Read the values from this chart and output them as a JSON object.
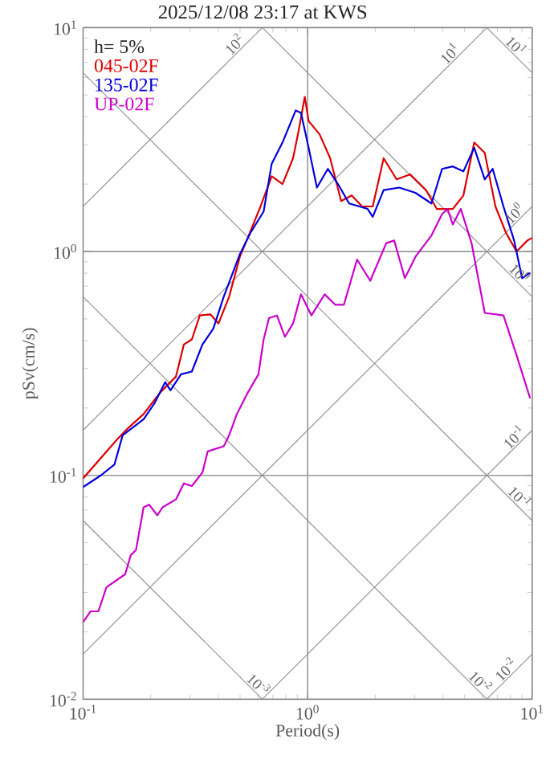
{
  "chart_data": {
    "type": "line",
    "title": "2025/12/08 23:17 at KWS",
    "xlabel": "Period(s)",
    "ylabel": "pSv(cm/s)",
    "log": "xy",
    "grid": true,
    "legend": "top left",
    "xlim": [
      0.1,
      10
    ],
    "ylim": [
      0.01,
      10
    ],
    "xticks": [
      {
        "value": 0.1,
        "label": "10$^{-1}$"
      },
      {
        "value": 1,
        "label": "10$^{0}$"
      },
      {
        "value": 10,
        "label": "10$^{1}$"
      }
    ],
    "yticks": [
      {
        "value": 0.01,
        "label": "10$^{-2}$"
      },
      {
        "value": 0.1,
        "label": "10$^{-1}$"
      },
      {
        "value": 1,
        "label": "10$^{0}$"
      },
      {
        "value": 10,
        "label": "10$^{1}$"
      }
    ],
    "annotations": [
      "h= 5%",
      {
        "text": "10$^{2}$",
        "x": 0.5,
        "y": 7.958
      },
      {
        "text": "10$^{1}$",
        "x": 4.55,
        "y": 7.242
      },
      {
        "text": "10$^{1}$",
        "x": 8.0,
        "y": 7.854
      },
      {
        "text": "10$^{0}$",
        "x": 8.8,
        "y": 1.401
      },
      {
        "text": "10$^{0}$",
        "x": 8.3,
        "y": 0.757
      },
      {
        "text": "10$^{-1}$",
        "x": 8.8,
        "y": 0.1401
      },
      {
        "text": "10$^{-1}$",
        "x": 8.3,
        "y": 0.0757
      },
      {
        "text": "10$^{-3}$",
        "x": 0.57,
        "y": 0.01102
      },
      {
        "text": "10$^{-2}$",
        "x": 5.55,
        "y": 0.01132
      },
      {
        "text": "10$^{-2}$",
        "x": 8.07,
        "y": 0.01284
      }
    ],
    "series": [
      {
        "color": "#939393",
        "x": [
          6.283,
          10
        ],
        "values": [
          0.01,
          0.01592
        ]
      },
      {
        "color": "#939393",
        "x": [
          0.6283,
          10
        ],
        "values": [
          0.01,
          0.1592
        ]
      },
      {
        "color": "#939393",
        "x": [
          0.1,
          10
        ],
        "values": [
          0.01592,
          1.592
        ]
      },
      {
        "color": "#939393",
        "x": [
          0.1,
          6.283
        ],
        "values": [
          0.1592,
          10
        ]
      },
      {
        "color": "#939393",
        "x": [
          0.1,
          0.6283
        ],
        "values": [
          1.592,
          10
        ]
      },
      {
        "color": "#939393",
        "x": [
          0.1,
          0.6283
        ],
        "values": [
          0.06283,
          0.01
        ]
      },
      {
        "color": "#939393",
        "x": [
          0.1,
          6.283
        ],
        "values": [
          0.6283,
          0.01
        ]
      },
      {
        "color": "#939393",
        "x": [
          0.1,
          10
        ],
        "values": [
          6.283,
          0.06283
        ]
      },
      {
        "color": "#939393",
        "x": [
          0.6283,
          10
        ],
        "values": [
          10,
          0.6283
        ]
      },
      {
        "color": "#939393",
        "x": [
          6.283,
          10
        ],
        "values": [
          10,
          6.283
        ]
      },
      {
        "name": "045-02F",
        "color": "#dd0000",
        "x": [
          0.1,
          0.142,
          0.158,
          0.186,
          0.22,
          0.259,
          0.281,
          0.305,
          0.331,
          0.369,
          0.401,
          0.447,
          0.499,
          0.541,
          0.617,
          0.692,
          0.773,
          0.861,
          0.91,
          0.971,
          1.01,
          1.13,
          1.26,
          1.41,
          1.57,
          1.75,
          1.95,
          2.18,
          2.49,
          2.86,
          3.37,
          3.76,
          4.43,
          4.94,
          5.52,
          6.15,
          6.86,
          7.65,
          8.53,
          9.52,
          10
        ],
        "values": [
          0.097,
          0.145,
          0.162,
          0.188,
          0.234,
          0.276,
          0.384,
          0.405,
          0.518,
          0.524,
          0.477,
          0.628,
          0.947,
          1.15,
          1.59,
          2.17,
          2.0,
          2.61,
          3.43,
          4.91,
          3.83,
          3.34,
          2.61,
          1.68,
          1.78,
          1.59,
          1.59,
          2.61,
          2.1,
          2.21,
          1.88,
          1.55,
          1.55,
          1.78,
          3.07,
          2.76,
          1.59,
          1.21,
          1.0,
          1.12,
          1.15
        ]
      },
      {
        "name": "135-02F",
        "color": "#0000dd",
        "x": [
          0.1,
          0.12,
          0.138,
          0.15,
          0.186,
          0.208,
          0.232,
          0.245,
          0.273,
          0.305,
          0.34,
          0.38,
          0.423,
          0.499,
          0.556,
          0.637,
          0.692,
          0.773,
          0.885,
          0.934,
          1.01,
          1.1,
          1.23,
          1.37,
          1.53,
          1.85,
          1.95,
          2.18,
          2.56,
          3.02,
          3.56,
          3.97,
          4.43,
          4.94,
          5.52,
          6.15,
          6.67,
          7.45,
          8.31,
          9.02,
          9.79
        ],
        "values": [
          0.0887,
          0.1,
          0.112,
          0.151,
          0.178,
          0.21,
          0.261,
          0.24,
          0.283,
          0.291,
          0.384,
          0.452,
          0.628,
          0.973,
          1.21,
          1.51,
          2.47,
          3.07,
          4.27,
          4.16,
          2.91,
          1.93,
          2.34,
          1.99,
          1.64,
          1.55,
          1.43,
          1.88,
          1.93,
          1.83,
          1.64,
          2.34,
          2.4,
          2.28,
          2.91,
          2.1,
          2.34,
          1.59,
          1.12,
          0.76,
          0.804
        ]
      },
      {
        "name": "UP-02F",
        "color": "#cc00cc",
        "x": [
          0.1,
          0.108,
          0.117,
          0.127,
          0.154,
          0.163,
          0.172,
          0.186,
          0.197,
          0.214,
          0.226,
          0.259,
          0.281,
          0.305,
          0.34,
          0.359,
          0.423,
          0.447,
          0.484,
          0.541,
          0.604,
          0.637,
          0.673,
          0.73,
          0.792,
          0.861,
          0.934,
          1.04,
          1.19,
          1.33,
          1.45,
          1.66,
          1.9,
          2.24,
          2.43,
          2.71,
          3.02,
          3.56,
          3.97,
          4.2,
          4.43,
          4.81,
          5.37,
          6.15,
          7.45,
          8.53,
          9.79
        ],
        "values": [
          0.0221,
          0.0247,
          0.0247,
          0.0316,
          0.0362,
          0.044,
          0.0464,
          0.072,
          0.074,
          0.0663,
          0.072,
          0.0781,
          0.0921,
          0.0896,
          0.103,
          0.128,
          0.135,
          0.151,
          0.188,
          0.234,
          0.283,
          0.405,
          0.504,
          0.518,
          0.416,
          0.477,
          0.644,
          0.518,
          0.644,
          0.578,
          0.578,
          0.921,
          0.74,
          1.09,
          1.12,
          0.76,
          0.947,
          1.18,
          1.47,
          1.55,
          1.32,
          1.55,
          1.09,
          0.532,
          0.518,
          0.343,
          0.221
        ]
      }
    ]
  }
}
